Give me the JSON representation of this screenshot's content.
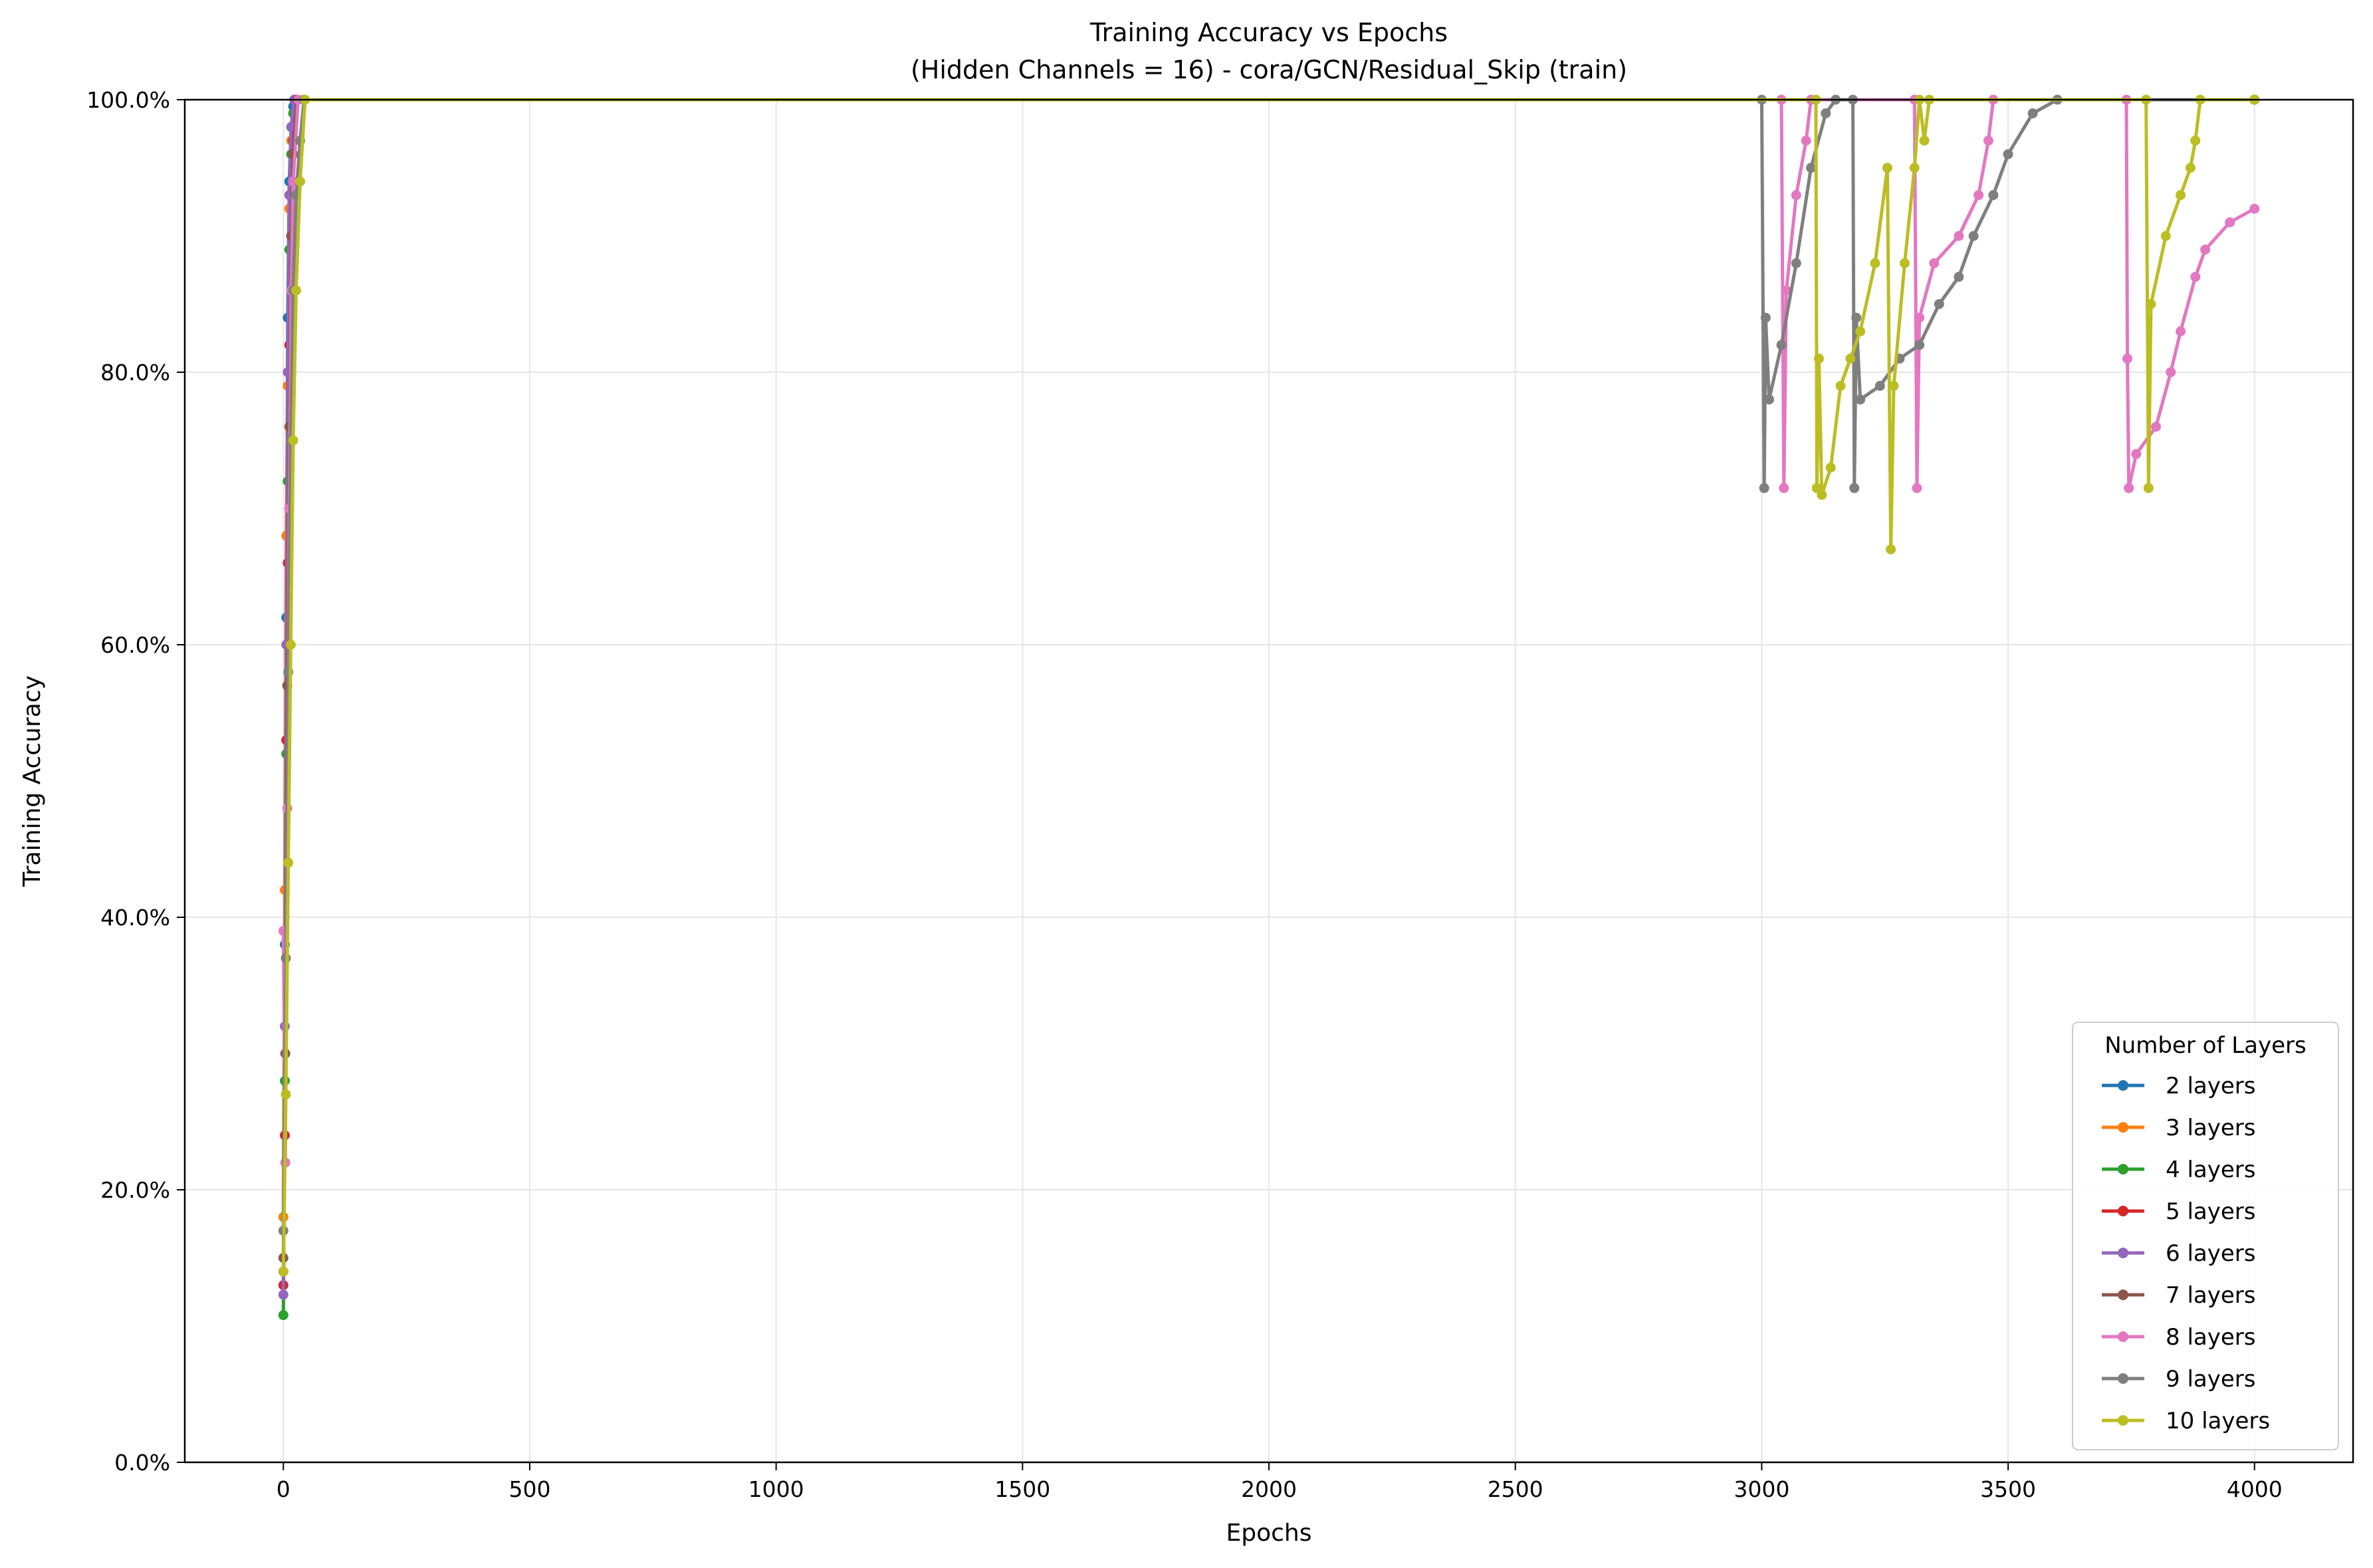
{
  "chart_data": {
    "type": "line",
    "title": "Training Accuracy vs Epochs",
    "subtitle": "(Hidden Channels = 16) - cora/GCN/Residual_Skip (train)",
    "xlabel": "Epochs",
    "ylabel": "Training Accuracy",
    "xlim": [
      -200,
      4200
    ],
    "ylim": [
      0,
      100
    ],
    "x_ticks": [
      0,
      500,
      1000,
      1500,
      2000,
      2500,
      3000,
      3500,
      4000
    ],
    "y_ticks": [
      0,
      20,
      40,
      60,
      80,
      100
    ],
    "y_tick_labels": [
      "0.0%",
      "20.0%",
      "40.0%",
      "60.0%",
      "80.0%",
      "100.0%"
    ],
    "grid": true,
    "legend": {
      "title": "Number of Layers",
      "position": "bottom-right"
    },
    "series": [
      {
        "name": "2 layers",
        "color": "#1f77b4",
        "points": [
          [
            0,
            14
          ],
          [
            3,
            38
          ],
          [
            6,
            62
          ],
          [
            9,
            84
          ],
          [
            12,
            94
          ],
          [
            16,
            98
          ],
          [
            20,
            99.5
          ],
          [
            25,
            100
          ],
          [
            4000,
            100
          ]
        ]
      },
      {
        "name": "3 layers",
        "color": "#ff7f0e",
        "points": [
          [
            0,
            18
          ],
          [
            3,
            42
          ],
          [
            6,
            68
          ],
          [
            9,
            79
          ],
          [
            12,
            92
          ],
          [
            16,
            97
          ],
          [
            20,
            99
          ],
          [
            25,
            100
          ],
          [
            4000,
            100
          ]
        ]
      },
      {
        "name": "4 layers",
        "color": "#2ca02c",
        "points": [
          [
            0,
            10.8
          ],
          [
            3,
            28
          ],
          [
            6,
            52
          ],
          [
            9,
            72
          ],
          [
            12,
            89
          ],
          [
            16,
            96
          ],
          [
            20,
            99
          ],
          [
            26,
            100
          ],
          [
            4000,
            100
          ]
        ]
      },
      {
        "name": "5 layers",
        "color": "#d62728",
        "points": [
          [
            0,
            13
          ],
          [
            3,
            24
          ],
          [
            6,
            53
          ],
          [
            9,
            66
          ],
          [
            12,
            82
          ],
          [
            16,
            90
          ],
          [
            20,
            97
          ],
          [
            26,
            100
          ],
          [
            4000,
            100
          ]
        ]
      },
      {
        "name": "6 layers",
        "color": "#9467bd",
        "points": [
          [
            0,
            12.3
          ],
          [
            3,
            32
          ],
          [
            6,
            60
          ],
          [
            9,
            80
          ],
          [
            12,
            93
          ],
          [
            16,
            98
          ],
          [
            22,
            100
          ],
          [
            4000,
            100
          ]
        ]
      },
      {
        "name": "7 layers",
        "color": "#8c564b",
        "points": [
          [
            0,
            15
          ],
          [
            4,
            30
          ],
          [
            8,
            57
          ],
          [
            12,
            76
          ],
          [
            16,
            90
          ],
          [
            20,
            96
          ],
          [
            28,
            100
          ],
          [
            4000,
            100
          ]
        ]
      },
      {
        "name": "8 layers",
        "color": "#e377c2",
        "points": [
          [
            0,
            39
          ],
          [
            4,
            22
          ],
          [
            8,
            48
          ],
          [
            12,
            70
          ],
          [
            16,
            86
          ],
          [
            20,
            94
          ],
          [
            30,
            100
          ],
          [
            3040,
            100
          ],
          [
            3045,
            71.5
          ],
          [
            3050,
            86
          ],
          [
            3070,
            93
          ],
          [
            3090,
            97
          ],
          [
            3100,
            100
          ],
          [
            3310,
            100
          ],
          [
            3315,
            71.5
          ],
          [
            3320,
            84
          ],
          [
            3350,
            88
          ],
          [
            3400,
            90
          ],
          [
            3440,
            93
          ],
          [
            3460,
            97
          ],
          [
            3470,
            100
          ],
          [
            3740,
            100
          ],
          [
            3742,
            81
          ],
          [
            3745,
            71.5
          ],
          [
            3760,
            74
          ],
          [
            3800,
            76
          ],
          [
            3830,
            80
          ],
          [
            3850,
            83
          ],
          [
            3880,
            87
          ],
          [
            3900,
            89
          ],
          [
            3950,
            91
          ],
          [
            4000,
            92
          ]
        ]
      },
      {
        "name": "9 layers",
        "color": "#7f7f7f",
        "points": [
          [
            0,
            17
          ],
          [
            5,
            37
          ],
          [
            10,
            58
          ],
          [
            15,
            75
          ],
          [
            20,
            86
          ],
          [
            26,
            93
          ],
          [
            34,
            97
          ],
          [
            42,
            100
          ],
          [
            3000,
            100
          ],
          [
            3005,
            71.5
          ],
          [
            3008,
            84
          ],
          [
            3015,
            78
          ],
          [
            3040,
            82
          ],
          [
            3070,
            88
          ],
          [
            3100,
            95
          ],
          [
            3130,
            99
          ],
          [
            3150,
            100
          ],
          [
            3185,
            100
          ],
          [
            3188,
            71.5
          ],
          [
            3192,
            84
          ],
          [
            3200,
            78
          ],
          [
            3240,
            79
          ],
          [
            3280,
            81
          ],
          [
            3320,
            82
          ],
          [
            3360,
            85
          ],
          [
            3400,
            87
          ],
          [
            3430,
            90
          ],
          [
            3470,
            93
          ],
          [
            3500,
            96
          ],
          [
            3550,
            99
          ],
          [
            3600,
            100
          ],
          [
            4000,
            100
          ]
        ]
      },
      {
        "name": "10 layers",
        "color": "#bcbd22",
        "points": [
          [
            0,
            14
          ],
          [
            5,
            27
          ],
          [
            10,
            44
          ],
          [
            15,
            60
          ],
          [
            20,
            75
          ],
          [
            26,
            86
          ],
          [
            34,
            94
          ],
          [
            44,
            100
          ],
          [
            3110,
            100
          ],
          [
            3112,
            71.5
          ],
          [
            3116,
            81
          ],
          [
            3122,
            71
          ],
          [
            3140,
            73
          ],
          [
            3160,
            79
          ],
          [
            3180,
            81
          ],
          [
            3200,
            83
          ],
          [
            3230,
            88
          ],
          [
            3255,
            95
          ],
          [
            3262,
            67
          ],
          [
            3268,
            79
          ],
          [
            3290,
            88
          ],
          [
            3310,
            95
          ],
          [
            3320,
            100
          ],
          [
            3330,
            97
          ],
          [
            3340,
            100
          ],
          [
            3780,
            100
          ],
          [
            3785,
            71.5
          ],
          [
            3790,
            85
          ],
          [
            3820,
            90
          ],
          [
            3850,
            93
          ],
          [
            3870,
            95
          ],
          [
            3880,
            97
          ],
          [
            3890,
            100
          ],
          [
            4000,
            100
          ]
        ]
      }
    ]
  }
}
